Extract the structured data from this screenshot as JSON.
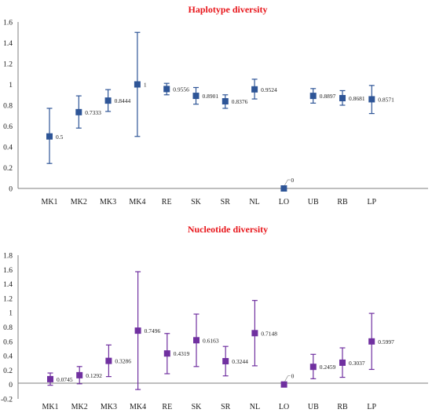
{
  "chart_data": [
    {
      "type": "scatter",
      "title": "Haplotype diversity",
      "categories": [
        "MK1",
        "MK2",
        "MK3",
        "MK4",
        "RE",
        "SK",
        "SR",
        "NL",
        "LO",
        "UB",
        "RB",
        "LP"
      ],
      "values": [
        0.5,
        0.7333,
        0.8444,
        1,
        0.9556,
        0.8901,
        0.8376,
        0.9524,
        0,
        0.8897,
        0.8681,
        0.8571
      ],
      "data_labels": [
        "0.5",
        "0.7333",
        "0.8444",
        "1",
        "0.9556",
        "0.8901",
        "0.8376",
        "0.9524",
        "0",
        "0.8897",
        "0.8681",
        "0.8571"
      ],
      "error_low": [
        0.24,
        0.58,
        0.74,
        0.5,
        0.9,
        0.81,
        0.77,
        0.86,
        0,
        0.82,
        0.8,
        0.72
      ],
      "error_high": [
        0.77,
        0.89,
        0.95,
        1.5,
        1.01,
        0.97,
        0.9,
        1.05,
        0,
        0.96,
        0.94,
        0.99
      ],
      "ylim": [
        0,
        1.6
      ],
      "yticks": [
        "0",
        "0.2",
        "0.4",
        "0.6",
        "0.8",
        "1",
        "1.2",
        "1.4",
        "1.6"
      ],
      "ytick_values": [
        0,
        0.2,
        0.4,
        0.6,
        0.8,
        1,
        1.2,
        1.4,
        1.6
      ],
      "grid": false,
      "color": "#2e5597",
      "title_color": "#e8161b"
    },
    {
      "type": "scatter",
      "title": "Nucleotide diversity",
      "categories": [
        "MK1",
        "MK2",
        "MK3",
        "MK4",
        "RE",
        "SK",
        "SR",
        "NL",
        "LO",
        "UB",
        "RB",
        "LP"
      ],
      "values": [
        0.0745,
        0.1292,
        0.3286,
        0.7496,
        0.4319,
        0.6163,
        0.3244,
        0.7148,
        0,
        0.2459,
        0.3037,
        0.5997
      ],
      "data_labels": [
        "0.0745",
        "0.1292",
        "0.3286",
        "0.7496",
        "0.4319",
        "0.6163",
        "0.3244",
        "0.7148",
        "0",
        "0.2459",
        "0.3037",
        "0.5997"
      ],
      "error_low": [
        -0.01,
        0.01,
        0.11,
        -0.07,
        0.15,
        0.25,
        0.12,
        0.26,
        0,
        0.08,
        0.1,
        0.21
      ],
      "error_high": [
        0.16,
        0.25,
        0.55,
        1.57,
        0.71,
        0.98,
        0.53,
        1.17,
        0,
        0.42,
        0.51,
        0.99
      ],
      "ylim": [
        -0.2,
        1.8
      ],
      "yticks": [
        "-0.2",
        "0",
        "0.2",
        "0.4",
        "0.6",
        "0.8",
        "1",
        "1.2",
        "1.4",
        "1.6",
        "1.8"
      ],
      "ytick_values": [
        -0.2,
        0,
        0.2,
        0.4,
        0.6,
        0.8,
        1,
        1.2,
        1.4,
        1.6,
        1.8
      ],
      "grid": false,
      "color": "#7030a0",
      "title_color": "#e8161b"
    }
  ]
}
